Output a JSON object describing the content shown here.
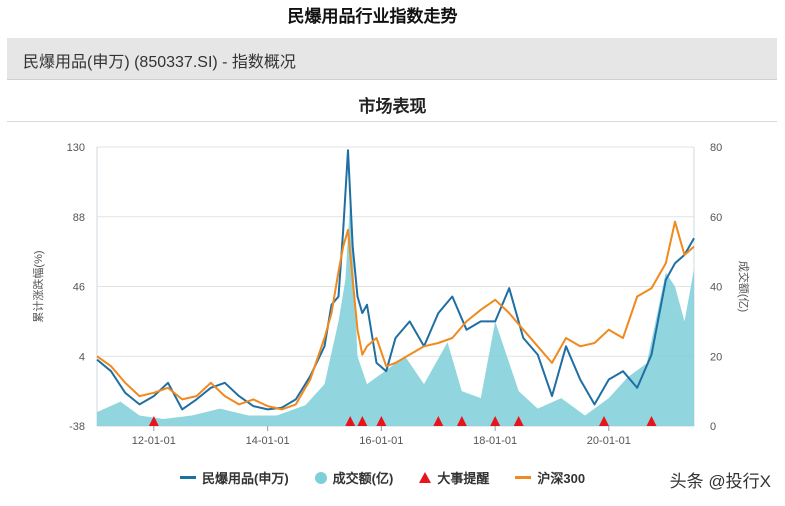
{
  "page": {
    "title": "民爆用品行业指数走势",
    "panel_header": "民爆用品(申万) (850337.SI) - 指数概况",
    "chart_section_title": "市场表现",
    "watermark": "头条 @投行X"
  },
  "colors": {
    "index_line": "#1f6fa3",
    "volume_area": "#7ecfd9",
    "event_marker": "#e8141c",
    "hs300_line": "#f0891e",
    "grid": "#e3e3e3"
  },
  "chart_data": {
    "type": "line",
    "ylabel": "累计涨跌幅(%)",
    "y2label": "成交额(亿)",
    "ylim": [
      -38,
      130
    ],
    "y2lim": [
      0,
      80
    ],
    "y_ticks": [
      "-38",
      "4",
      "46",
      "88",
      "130"
    ],
    "y2_ticks": [
      "0",
      "20",
      "40",
      "60",
      "80"
    ],
    "x_ticks": [
      "12-01-01",
      "14-01-01",
      "16-01-01",
      "18-01-01",
      "20-01-01"
    ],
    "x_range": [
      "2011-01-01",
      "2021-07-01"
    ],
    "legend": [
      "民爆用品(申万)",
      "成交额(亿)",
      "大事提醒",
      "沪深300"
    ],
    "legend_position": "bottom",
    "series": [
      {
        "name": "民爆用品(申万)",
        "x": [
          "2011-01-01",
          "2011-04-01",
          "2011-07-01",
          "2011-10-01",
          "2012-01-01",
          "2012-04-01",
          "2012-07-01",
          "2012-10-01",
          "2013-01-01",
          "2013-04-01",
          "2013-07-01",
          "2013-10-01",
          "2014-01-01",
          "2014-04-01",
          "2014-07-01",
          "2014-10-01",
          "2015-01-01",
          "2015-02-15",
          "2015-04-01",
          "2015-05-01",
          "2015-06-01",
          "2015-07-01",
          "2015-08-01",
          "2015-09-01",
          "2015-10-01",
          "2015-12-01",
          "2016-02-01",
          "2016-04-01",
          "2016-07-01",
          "2016-10-01",
          "2017-01-01",
          "2017-04-01",
          "2017-07-01",
          "2017-10-01",
          "2018-01-01",
          "2018-04-01",
          "2018-07-01",
          "2018-10-01",
          "2019-01-01",
          "2019-04-01",
          "2019-07-01",
          "2019-10-01",
          "2020-01-01",
          "2020-04-01",
          "2020-07-01",
          "2020-10-01",
          "2021-01-01",
          "2021-03-01",
          "2021-05-01",
          "2021-07-01"
        ],
        "values": [
          2,
          -5,
          -18,
          -25,
          -20,
          -12,
          -28,
          -22,
          -15,
          -12,
          -20,
          -26,
          -28,
          -27,
          -22,
          -8,
          10,
          35,
          40,
          80,
          128,
          70,
          40,
          30,
          35,
          0,
          -5,
          15,
          25,
          10,
          30,
          40,
          20,
          25,
          25,
          45,
          15,
          5,
          -20,
          10,
          -10,
          -25,
          -10,
          -5,
          -15,
          5,
          50,
          60,
          65,
          75
        ]
      },
      {
        "name": "沪深300",
        "x": [
          "2011-01-01",
          "2011-04-01",
          "2011-07-01",
          "2011-10-01",
          "2012-01-01",
          "2012-04-01",
          "2012-07-01",
          "2012-10-01",
          "2013-01-01",
          "2013-04-01",
          "2013-07-01",
          "2013-10-01",
          "2014-01-01",
          "2014-04-01",
          "2014-07-01",
          "2014-10-01",
          "2015-01-01",
          "2015-02-15",
          "2015-04-01",
          "2015-05-01",
          "2015-06-01",
          "2015-07-01",
          "2015-08-01",
          "2015-09-01",
          "2015-10-01",
          "2015-12-01",
          "2016-02-01",
          "2016-04-01",
          "2016-07-01",
          "2016-10-01",
          "2017-01-01",
          "2017-04-01",
          "2017-07-01",
          "2017-10-01",
          "2018-01-01",
          "2018-04-01",
          "2018-07-01",
          "2018-10-01",
          "2019-01-01",
          "2019-04-01",
          "2019-07-01",
          "2019-10-01",
          "2020-01-01",
          "2020-04-01",
          "2020-07-01",
          "2020-10-01",
          "2021-01-01",
          "2021-03-01",
          "2021-05-01",
          "2021-07-01"
        ],
        "values": [
          4,
          -2,
          -12,
          -20,
          -18,
          -15,
          -22,
          -20,
          -12,
          -20,
          -25,
          -22,
          -26,
          -28,
          -25,
          -10,
          15,
          30,
          55,
          70,
          80,
          50,
          20,
          5,
          10,
          15,
          -2,
          0,
          5,
          10,
          12,
          15,
          25,
          32,
          38,
          30,
          20,
          10,
          0,
          15,
          10,
          12,
          20,
          15,
          40,
          45,
          60,
          85,
          65,
          70
        ]
      }
    ],
    "volume": {
      "name": "成交额(亿)",
      "x": [
        "2011-01-01",
        "2011-06-01",
        "2011-10-01",
        "2012-03-01",
        "2012-09-01",
        "2013-03-01",
        "2013-09-01",
        "2014-03-01",
        "2014-09-01",
        "2015-01-01",
        "2015-04-01",
        "2015-05-15",
        "2015-06-15",
        "2015-08-01",
        "2015-10-01",
        "2016-01-01",
        "2016-06-01",
        "2016-10-01",
        "2017-03-01",
        "2017-06-01",
        "2017-10-01",
        "2018-01-01",
        "2018-06-01",
        "2018-10-01",
        "2019-03-01",
        "2019-08-01",
        "2020-01-01",
        "2020-05-01",
        "2020-09-01",
        "2021-01-01",
        "2021-03-01",
        "2021-05-01",
        "2021-07-01"
      ],
      "values": [
        4,
        7,
        3,
        2,
        3,
        5,
        3,
        3,
        6,
        12,
        30,
        42,
        65,
        20,
        12,
        15,
        20,
        12,
        24,
        10,
        8,
        30,
        10,
        5,
        8,
        3,
        8,
        14,
        18,
        44,
        40,
        30,
        45
      ]
    },
    "events": [
      "2012-01-01",
      "2015-06-15",
      "2015-09-01",
      "2016-01-01",
      "2017-01-01",
      "2017-06-01",
      "2018-01-01",
      "2018-06-01",
      "2019-12-01",
      "2020-10-01"
    ]
  }
}
